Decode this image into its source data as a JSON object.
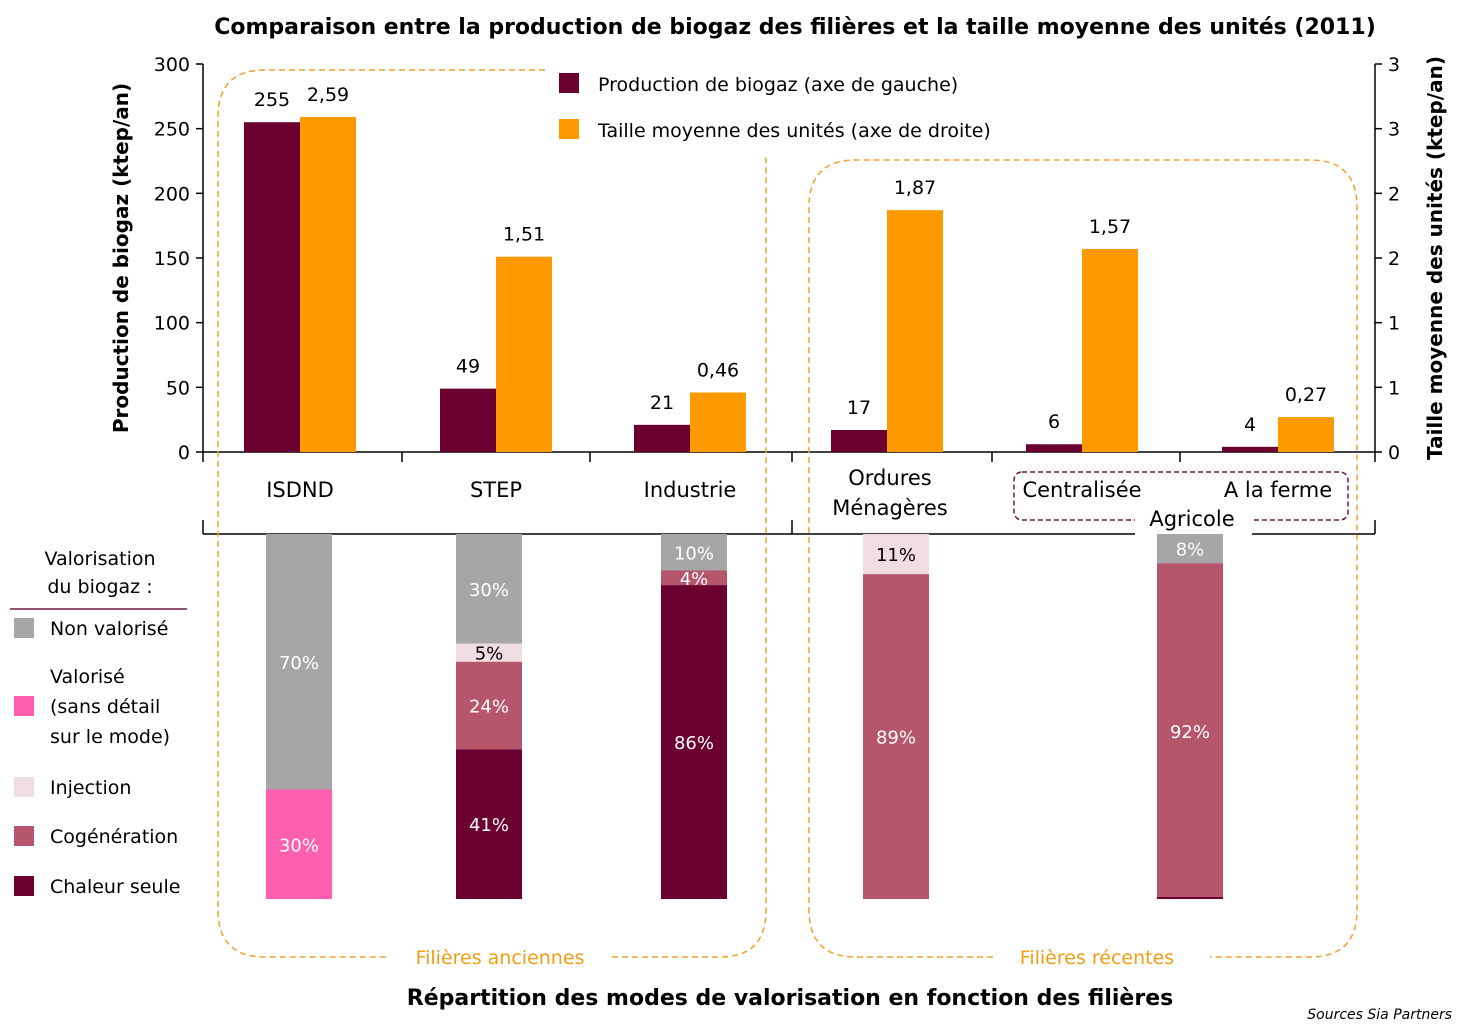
{
  "colors": {
    "production": "#6b0030",
    "taille": "#ff9900",
    "non_valorise": "#a6a6a6",
    "valorise": "#ff5fae",
    "injection": "#f0dde1",
    "cogeneration": "#b6566c",
    "chaleur": "#6b0030",
    "group_border": "#f0a030",
    "agricole_border": "#6b1848"
  },
  "chart_data": [
    {
      "type": "bar",
      "title": "Comparaison entre la production de biogaz des filières et la taille moyenne des unités (2011)",
      "ylabel": "Production de biogaz (ktep/an)",
      "y2label": "Taille moyenne des unités (ktep/an)",
      "ylim": [
        0,
        300
      ],
      "y2lim": [
        0,
        3
      ],
      "yticks": [
        "0",
        "50",
        "100",
        "150",
        "200",
        "250",
        "300"
      ],
      "y2ticks": [
        "0",
        "1",
        "1",
        "2",
        "2",
        "3",
        "3"
      ],
      "categories": [
        "ISDND",
        "STEP",
        "Industrie",
        "Ordures Ménagères",
        "Centralisée",
        "A la ferme"
      ],
      "category_lines": [
        [
          "ISDND"
        ],
        [
          "STEP"
        ],
        [
          "Industrie"
        ],
        [
          "Ordures",
          "Ménagères"
        ],
        [
          "Centralisée"
        ],
        [
          "A la ferme"
        ]
      ],
      "agricole_label": "Agricole",
      "series": [
        {
          "name": "Production de biogaz (axe de gauche)",
          "axis": "left",
          "values": [
            255,
            49,
            21,
            17,
            6,
            4
          ],
          "labels": [
            "255",
            "49",
            "21",
            "17",
            "6",
            "4"
          ]
        },
        {
          "name": "Taille moyenne des unités (axe de droite)",
          "axis": "right",
          "values": [
            2.59,
            1.51,
            0.46,
            1.87,
            1.57,
            0.27
          ],
          "labels": [
            "2,59",
            "1,51",
            "0,46",
            "1,87",
            "1,57",
            "0,27"
          ]
        }
      ],
      "legend": "top-center"
    },
    {
      "type": "bar",
      "stacked": true,
      "percent": true,
      "title": "Répartition des modes de valorisation en fonction des filières",
      "legend_title": "Valorisation du biogaz :",
      "legend_title_lines": [
        "Valorisation",
        "du biogaz :"
      ],
      "legend": [
        {
          "key": "non_valorise",
          "lines": [
            "Non valorisé"
          ]
        },
        {
          "key": "valorise",
          "lines": [
            "Valorisé",
            "(sans détail",
            "sur le mode)"
          ]
        },
        {
          "key": "injection",
          "lines": [
            "Injection"
          ]
        },
        {
          "key": "cogeneration",
          "lines": [
            "Cogénération"
          ]
        },
        {
          "key": "chaleur",
          "lines": [
            "Chaleur seule"
          ]
        }
      ],
      "categories": [
        "ISDND",
        "STEP",
        "Industrie",
        "Ordures Ménagères",
        "Agricole"
      ],
      "bars": [
        {
          "category": "ISDND",
          "segments": [
            {
              "key": "non_valorise",
              "value": 70,
              "label": "70%"
            },
            {
              "key": "valorise",
              "value": 30,
              "label": "30%"
            }
          ]
        },
        {
          "category": "STEP",
          "segments": [
            {
              "key": "non_valorise",
              "value": 30,
              "label": "30%"
            },
            {
              "key": "injection",
              "value": 5,
              "label": "5%"
            },
            {
              "key": "cogeneration",
              "value": 24,
              "label": "24%"
            },
            {
              "key": "chaleur",
              "value": 41,
              "label": "41%"
            }
          ]
        },
        {
          "category": "Industrie",
          "segments": [
            {
              "key": "non_valorise",
              "value": 10,
              "label": "10%"
            },
            {
              "key": "cogeneration",
              "value": 4,
              "label": "4%"
            },
            {
              "key": "chaleur",
              "value": 86,
              "label": "86%"
            }
          ]
        },
        {
          "category": "Ordures Ménagères",
          "segments": [
            {
              "key": "injection",
              "value": 11,
              "label": "11%"
            },
            {
              "key": "cogeneration",
              "value": 89,
              "label": "89%"
            }
          ]
        },
        {
          "category": "Agricole",
          "segments": [
            {
              "key": "non_valorise",
              "value": 8,
              "label": "8%"
            },
            {
              "key": "cogeneration",
              "value": 92,
              "label": "92%"
            }
          ]
        }
      ]
    }
  ],
  "groups": {
    "anciennes": "Filières anciennes",
    "recentes": "Filières récentes"
  },
  "source": "Sources Sia Partners"
}
